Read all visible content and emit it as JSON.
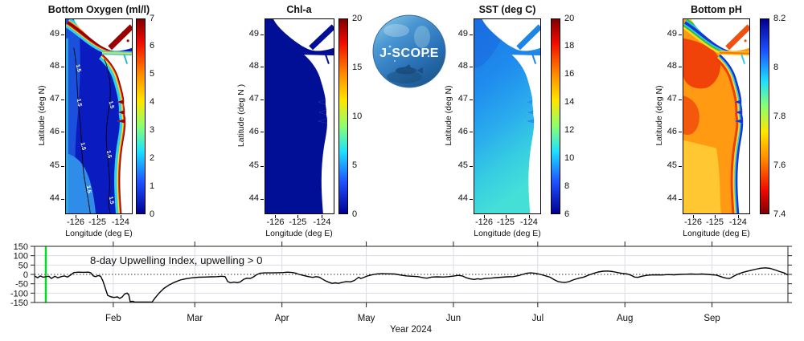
{
  "logo": {
    "label": "J-SCOPE"
  },
  "maps": [
    {
      "title": "Bottom Oxygen (ml/l)",
      "ylabel": "Latitude (deg N)",
      "xlabel": "Longitude (deg E)",
      "lat_ticks": [
        "49",
        "48",
        "47",
        "46",
        "45",
        "44"
      ],
      "lon_ticks": [
        "-126",
        "-125",
        "-124"
      ],
      "colorbar_ticks": [
        "7",
        "6",
        "5",
        "4",
        "3",
        "2",
        "1",
        "0"
      ],
      "contour_label": "1.5"
    },
    {
      "title": "Chl-a",
      "ylabel": "Latitude (deg N )",
      "xlabel": "Longitude (deg E)",
      "lat_ticks": [
        "49",
        "48",
        "47",
        "46",
        "45",
        "44"
      ],
      "lon_ticks": [
        "-126",
        "-125",
        "-124"
      ],
      "colorbar_ticks": [
        "20",
        "15",
        "10",
        "5",
        "0"
      ]
    },
    {
      "title": "SST (deg C)",
      "ylabel": "Latitude (deg N)",
      "xlabel": "Longitude (deg E)",
      "lat_ticks": [
        "49",
        "48",
        "47",
        "46",
        "45",
        "44"
      ],
      "lon_ticks": [
        "-126",
        "-125",
        "-124"
      ],
      "colorbar_ticks": [
        "20",
        "18",
        "16",
        "14",
        "12",
        "10",
        "8",
        "6"
      ]
    },
    {
      "title": "Bottom pH",
      "ylabel": "Latitude (deg N)",
      "xlabel": "Longitude (deg E)",
      "lat_ticks": [
        "49",
        "48",
        "47",
        "46",
        "45",
        "44"
      ],
      "lon_ticks": [
        "-126",
        "-125",
        "-124"
      ],
      "colorbar_ticks": [
        "8.2",
        "8",
        "7.8",
        "7.6",
        "7.4"
      ]
    }
  ],
  "timeseries": {
    "annotation": "8-day Upwelling Index, upwelling > 0",
    "xlabel": "Year 2024",
    "y_ticks": [
      150,
      100,
      50,
      0,
      -50,
      -100,
      -150
    ],
    "month_ticks": [
      {
        "label": "Feb",
        "day": 32
      },
      {
        "label": "Mar",
        "day": 61
      },
      {
        "label": "Apr",
        "day": 92
      },
      {
        "label": "May",
        "day": 122
      },
      {
        "label": "Jun",
        "day": 153
      },
      {
        "label": "Jul",
        "day": 183
      },
      {
        "label": "Aug",
        "day": 214
      },
      {
        "label": "Sep",
        "day": 245
      }
    ],
    "x_domain_days": [
      4,
      272
    ],
    "y_domain": [
      -150,
      150
    ],
    "start_marker": {
      "day": 8,
      "color": "#00dd22"
    },
    "line_color": "#000000"
  },
  "chart_data": [
    {
      "type": "map",
      "title": "Bottom Oxygen (ml/l)",
      "xlabel": "Longitude (deg E)",
      "ylabel": "Latitude (deg N)",
      "lon_ticks": [
        -126,
        -125,
        -124
      ],
      "lat_ticks": [
        49,
        48,
        47,
        46,
        45,
        44
      ],
      "colorbar": {
        "min": 0,
        "max": 7,
        "ticks": [
          7,
          6,
          5,
          4,
          3,
          2,
          1,
          0
        ],
        "colormap": "jet",
        "orientation": "max-at-top"
      },
      "contour_level": 1.5,
      "description": "Low-oxygen deep blue water offshore (~1 ml/l) bounded by black 1.5 ml/l contours; cyan-yellow-red high-oxygen band along the coast, Strait of Juan de Fuca and Vancouver Island shore"
    },
    {
      "type": "map",
      "title": "Chl-a",
      "xlabel": "Longitude (deg E)",
      "ylabel": "Latitude (deg N )",
      "lon_ticks": [
        -126,
        -125,
        -124
      ],
      "lat_ticks": [
        49,
        48,
        47,
        46,
        45,
        44
      ],
      "colorbar": {
        "min": 0,
        "max": 20,
        "ticks": [
          20,
          15,
          10,
          5,
          0
        ],
        "colormap": "jet",
        "orientation": "max-at-top"
      },
      "description": "Uniform near-zero chlorophyll-a (dark navy) across the whole domain"
    },
    {
      "type": "map",
      "title": "SST (deg C)",
      "xlabel": "Longitude (deg E)",
      "ylabel": "Latitude (deg N)",
      "lon_ticks": [
        -126,
        -125,
        -124
      ],
      "lat_ticks": [
        49,
        48,
        47,
        46,
        45,
        44
      ],
      "colorbar": {
        "min": 6,
        "max": 20,
        "ticks": [
          20,
          18,
          16,
          14,
          12,
          10,
          8,
          6
        ],
        "colormap": "jet",
        "orientation": "max-at-top"
      },
      "description": "SST about 8-9 C (blue) in the north grading to ~10-11 C (cyan) in the south"
    },
    {
      "type": "map",
      "title": "Bottom pH",
      "xlabel": "Longitude (deg E)",
      "ylabel": "Latitude (deg N)",
      "lon_ticks": [
        -126,
        -125,
        -124
      ],
      "lat_ticks": [
        49,
        48,
        47,
        46,
        45,
        44
      ],
      "colorbar": {
        "min": 7.4,
        "max": 8.2,
        "ticks": [
          8.2,
          8.0,
          7.8,
          7.6,
          7.4
        ],
        "colormap": "jet-reversed",
        "orientation": "max-at-top"
      },
      "description": "Low pH ~7.5-7.6 (orange/red) offshore with higher pH ~8.0 (dark blue band) hugging the coast; green-yellow bands along Vancouver Island"
    },
    {
      "type": "line",
      "title": "8-day Upwelling Index, upwelling > 0",
      "xlabel": "Year 2024",
      "x_unit": "day_of_year_2024",
      "xlim": [
        4,
        272
      ],
      "ylim": [
        -150,
        150
      ],
      "y_ticks": [
        150,
        100,
        50,
        0,
        -50,
        -100,
        -150
      ],
      "month_start_days": {
        "Feb": 32,
        "Mar": 61,
        "Apr": 92,
        "May": 122,
        "Jun": 153,
        "Jul": 183,
        "Aug": 214,
        "Sep": 245
      },
      "zero_line": "dotted",
      "forecast_start_marker_day": 8,
      "legend": "none",
      "grid": true,
      "series": [
        {
          "name": "8-day Upwelling Index",
          "color": "#000000",
          "points": [
            [
              4,
              -8
            ],
            [
              5.1,
              -18
            ],
            [
              6,
              -8
            ],
            [
              7.1,
              -15
            ],
            [
              8,
              -12
            ],
            [
              9.1,
              -10
            ],
            [
              10,
              -22
            ],
            [
              11.2,
              -10
            ],
            [
              12.3,
              -18
            ],
            [
              13.4,
              -12
            ],
            [
              14.6,
              -8
            ],
            [
              15.7,
              -14
            ],
            [
              16.9,
              -2
            ],
            [
              18,
              10
            ],
            [
              19.7,
              12
            ],
            [
              21.4,
              11
            ],
            [
              23.2,
              12
            ],
            [
              24,
              8
            ],
            [
              24.9,
              -8
            ],
            [
              25.7,
              -12
            ],
            [
              26.6,
              -6
            ],
            [
              27.5,
              -10
            ],
            [
              28.3,
              -35
            ],
            [
              29.2,
              -75
            ],
            [
              30,
              -112
            ],
            [
              31.2,
              -120
            ],
            [
              32.3,
              -123
            ],
            [
              33.5,
              -120
            ],
            [
              34.3,
              -128
            ],
            [
              35.2,
              -120
            ],
            [
              36,
              -105
            ],
            [
              36.9,
              -100
            ],
            [
              37.5,
              -108
            ],
            [
              38,
              -145
            ],
            [
              38.9,
              -143
            ],
            [
              39.7,
              -150
            ],
            [
              40.9,
              -148
            ],
            [
              41.8,
              -153
            ],
            [
              43.2,
              -155
            ],
            [
              44.6,
              -152
            ],
            [
              45.8,
              -148
            ],
            [
              46.9,
              -125
            ],
            [
              48.3,
              -100
            ],
            [
              50,
              -75
            ],
            [
              51.8,
              -57
            ],
            [
              53.8,
              -42
            ],
            [
              55.8,
              -30
            ],
            [
              57.8,
              -23
            ],
            [
              60.1,
              -18
            ],
            [
              62.4,
              -15
            ],
            [
              64.6,
              -14
            ],
            [
              66.9,
              -13
            ],
            [
              68.9,
              -12
            ],
            [
              70.6,
              -10
            ],
            [
              71.8,
              -12
            ],
            [
              72.7,
              -38
            ],
            [
              73.8,
              -45
            ],
            [
              74.9,
              -41
            ],
            [
              76.1,
              -44
            ],
            [
              77.2,
              -40
            ],
            [
              78.4,
              -26
            ],
            [
              79.5,
              -20
            ],
            [
              80.7,
              -22
            ],
            [
              81.8,
              -14
            ],
            [
              82.9,
              -2
            ],
            [
              84.1,
              6
            ],
            [
              85.8,
              8
            ],
            [
              88.1,
              8
            ],
            [
              90.4,
              9
            ],
            [
              92.4,
              10
            ],
            [
              94.1,
              12
            ],
            [
              95.8,
              10
            ],
            [
              97,
              6
            ],
            [
              98.1,
              0
            ],
            [
              99.8,
              -6
            ],
            [
              101.5,
              -12
            ],
            [
              103,
              -16
            ],
            [
              104.1,
              -12
            ],
            [
              105.3,
              -15
            ],
            [
              106.4,
              -25
            ],
            [
              107.6,
              -35
            ],
            [
              108.7,
              -42
            ],
            [
              109.8,
              -48
            ],
            [
              111,
              -45
            ],
            [
              112.1,
              -48
            ],
            [
              113.6,
              -42
            ],
            [
              115,
              -38
            ],
            [
              116.4,
              -40
            ],
            [
              117.8,
              -32
            ],
            [
              119.3,
              -15
            ],
            [
              120.1,
              -22
            ],
            [
              121.3,
              -15
            ],
            [
              122.4,
              -8
            ],
            [
              123.8,
              -3
            ],
            [
              125.6,
              2
            ],
            [
              127.6,
              4
            ],
            [
              129.9,
              3
            ],
            [
              132.1,
              2
            ],
            [
              134.4,
              -4
            ],
            [
              136.4,
              -8
            ],
            [
              138.4,
              -10
            ],
            [
              140.4,
              -12
            ],
            [
              142.4,
              -18
            ],
            [
              143.6,
              -20
            ],
            [
              145.3,
              -14
            ],
            [
              147.3,
              -13
            ],
            [
              149.3,
              -14
            ],
            [
              151.3,
              -12
            ],
            [
              153.3,
              -8
            ],
            [
              154.7,
              -5
            ],
            [
              156.2,
              -8
            ],
            [
              157.6,
              -18
            ],
            [
              159,
              -24
            ],
            [
              160.4,
              -27
            ],
            [
              161.6,
              -23
            ],
            [
              162.7,
              -26
            ],
            [
              164.2,
              -22
            ],
            [
              166.2,
              -20
            ],
            [
              168.2,
              -17
            ],
            [
              170.2,
              -15
            ],
            [
              172.2,
              -13
            ],
            [
              174.2,
              -12
            ],
            [
              176.2,
              -6
            ],
            [
              177.6,
              0
            ],
            [
              179.1,
              6
            ],
            [
              180.5,
              8
            ],
            [
              181.9,
              6
            ],
            [
              183.1,
              3
            ],
            [
              184.5,
              -2
            ],
            [
              185.9,
              -8
            ],
            [
              187.4,
              -15
            ],
            [
              188.8,
              -28
            ],
            [
              190.2,
              -38
            ],
            [
              191.7,
              -42
            ],
            [
              192.8,
              -43
            ],
            [
              194.2,
              -38
            ],
            [
              195.9,
              -28
            ],
            [
              197.7,
              -20
            ],
            [
              199.4,
              -14
            ],
            [
              201.1,
              -4
            ],
            [
              202.8,
              5
            ],
            [
              204.5,
              13
            ],
            [
              206.3,
              17
            ],
            [
              208,
              18
            ],
            [
              209.7,
              15
            ],
            [
              211.4,
              10
            ],
            [
              213.1,
              5
            ],
            [
              214.9,
              2
            ],
            [
              216.3,
              -5
            ],
            [
              217.4,
              -14
            ],
            [
              218.6,
              -16
            ],
            [
              220,
              -10
            ],
            [
              221.7,
              -5
            ],
            [
              223.4,
              -3
            ],
            [
              225.4,
              -2
            ],
            [
              227.4,
              -3
            ],
            [
              229.4,
              -1
            ],
            [
              231.5,
              -2
            ],
            [
              233.5,
              0
            ],
            [
              235.5,
              1
            ],
            [
              237.5,
              2
            ],
            [
              239.5,
              1
            ],
            [
              241.5,
              2
            ],
            [
              243.5,
              0
            ],
            [
              245.2,
              -2
            ],
            [
              246.6,
              -4
            ],
            [
              247.8,
              -10
            ],
            [
              248.9,
              -16
            ],
            [
              250.1,
              -20
            ],
            [
              251.2,
              -22
            ],
            [
              252,
              -16
            ],
            [
              252.9,
              -8
            ],
            [
              254,
              0
            ],
            [
              255.4,
              8
            ],
            [
              257.2,
              16
            ],
            [
              258.9,
              22
            ],
            [
              260.6,
              28
            ],
            [
              262.3,
              33
            ],
            [
              264,
              35
            ],
            [
              265.7,
              32
            ],
            [
              267.4,
              24
            ],
            [
              269.1,
              15
            ],
            [
              270.6,
              8
            ],
            [
              272,
              -3
            ]
          ]
        }
      ]
    }
  ]
}
